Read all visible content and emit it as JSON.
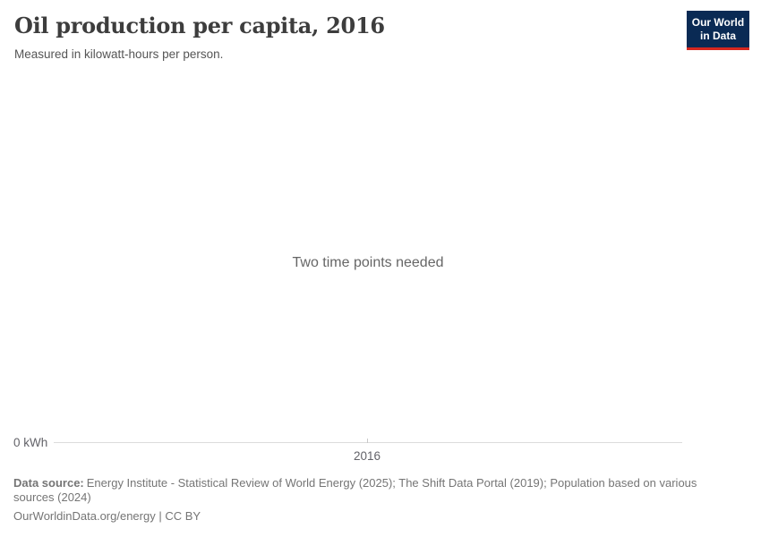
{
  "header": {
    "title": "Oil production per capita, 2016",
    "subtitle": "Measured in kilowatt-hours per person.",
    "logo": {
      "line1": "Our World",
      "line2": "in Data"
    }
  },
  "chart": {
    "empty_message": "Two time points needed",
    "y_axis_tick": "0 kWh",
    "x_axis_tick": "2016"
  },
  "chart_data": {
    "type": "line",
    "title": "Oil production per capita, 2016",
    "subtitle": "Measured in kilowatt-hours per person.",
    "unit": "kilowatt-hours per person",
    "series": [],
    "x_tick_labels": [
      "2016"
    ],
    "y_tick_labels": [
      "0 kWh"
    ],
    "ylim_min": 0,
    "grid": false,
    "legend_position": "none",
    "empty_state_message": "Two time points needed"
  },
  "footer": {
    "data_source_label": "Data source:",
    "data_source_text": "Energy Institute - Statistical Review of World Energy (2025); The Shift Data Portal (2019); Population based on various sources (2024)",
    "license_text": "OurWorldinData.org/energy | CC BY"
  },
  "colors": {
    "logo_bg": "#0a2a54",
    "logo_accent": "#d6271f",
    "axis_line": "#dcdcdc",
    "title_text": "#3d3d3d",
    "muted_text": "#757575"
  }
}
